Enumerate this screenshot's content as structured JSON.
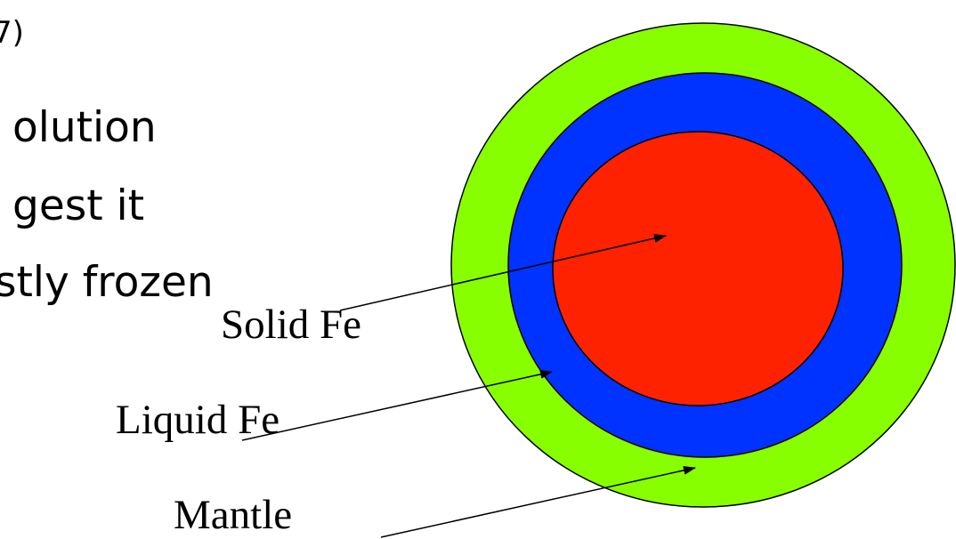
{
  "slide": {
    "caption_fragment": "7)",
    "bullet_lines": [
      "olution",
      "gest it",
      "stly frozen"
    ]
  },
  "diagram": {
    "layers": [
      {
        "label": "Mantle",
        "color": "#88ff00"
      },
      {
        "label": "Liquid Fe",
        "color": "#0033ff"
      },
      {
        "label": "Solid Fe",
        "color": "#ff2200"
      }
    ]
  }
}
